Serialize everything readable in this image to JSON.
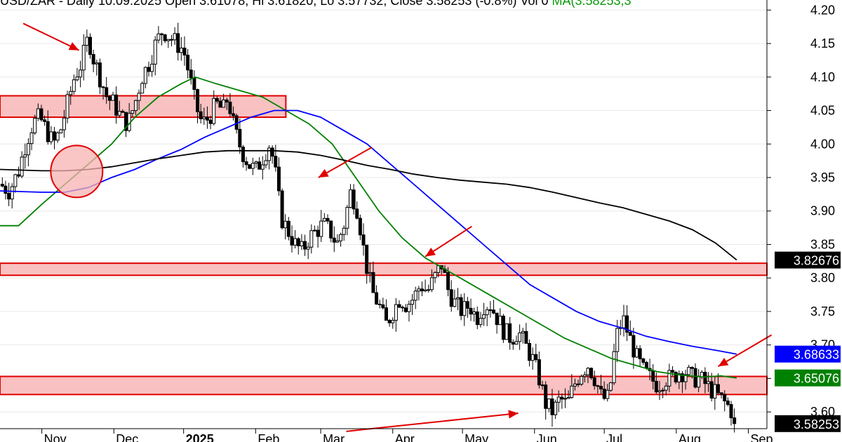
{
  "header": {
    "text": "USD/ZAR - Daily 10.09.2025 Open 3.61078, Hi 3.61820, Lo 3.57732, Close 3.58253 (-0.8%) Vol 0 ",
    "ma_text": "MA(3.58253,3"
  },
  "chart_data": {
    "type": "candlestick",
    "title": "USD/ZAR - Daily 10.09.2025",
    "ohlc_close": 3.58253,
    "ylim": [
      3.575,
      4.215
    ],
    "y_ticks": [
      "4.20",
      "4.15",
      "4.10",
      "4.05",
      "4.00",
      "3.95",
      "3.90",
      "3.85",
      "3.80",
      "3.75",
      "3.70",
      "3.65",
      "3.60"
    ],
    "x_labels": [
      "Nov",
      "Dec",
      "2025",
      "Feb",
      "Mar",
      "Apr",
      "May",
      "Jun",
      "Jul",
      "Aug",
      "Sep"
    ],
    "x_label_bold": [
      false,
      false,
      true,
      false,
      false,
      false,
      false,
      false,
      false,
      false,
      false
    ],
    "x_days": [
      0,
      31,
      61,
      92,
      120,
      151,
      181,
      212,
      242,
      273,
      304
    ],
    "x_range_days": [
      -18,
      312
    ],
    "price_path": [
      [
        -18,
        3.94
      ],
      [
        -14,
        3.93
      ],
      [
        -10,
        3.96
      ],
      [
        -7,
        4.0
      ],
      [
        -4,
        4.03
      ],
      [
        -1,
        4.04
      ],
      [
        2,
        4.02
      ],
      [
        5,
        4.0
      ],
      [
        8,
        4.02
      ],
      [
        11,
        4.06
      ],
      [
        14,
        4.1
      ],
      [
        17,
        4.12
      ],
      [
        20,
        4.16
      ],
      [
        22,
        4.13
      ],
      [
        25,
        4.1
      ],
      [
        28,
        4.07
      ],
      [
        31,
        4.06
      ],
      [
        34,
        4.04
      ],
      [
        37,
        4.03
      ],
      [
        40,
        4.06
      ],
      [
        43,
        4.1
      ],
      [
        46,
        4.12
      ],
      [
        49,
        4.15
      ],
      [
        52,
        4.17
      ],
      [
        55,
        4.16
      ],
      [
        58,
        4.15
      ],
      [
        61,
        4.14
      ],
      [
        63,
        4.11
      ],
      [
        66,
        4.06
      ],
      [
        69,
        4.03
      ],
      [
        72,
        4.04
      ],
      [
        75,
        4.06
      ],
      [
        78,
        4.05
      ],
      [
        80,
        4.07
      ],
      [
        83,
        4.02
      ],
      [
        86,
        3.99
      ],
      [
        89,
        3.97
      ],
      [
        92,
        3.96
      ],
      [
        95,
        3.98
      ],
      [
        98,
        4.0
      ],
      [
        100,
        3.97
      ],
      [
        103,
        3.89
      ],
      [
        106,
        3.87
      ],
      [
        109,
        3.85
      ],
      [
        112,
        3.84
      ],
      [
        115,
        3.86
      ],
      [
        118,
        3.87
      ],
      [
        121,
        3.88
      ],
      [
        124,
        3.87
      ],
      [
        127,
        3.85
      ],
      [
        130,
        3.88
      ],
      [
        133,
        3.93
      ],
      [
        136,
        3.9
      ],
      [
        139,
        3.83
      ],
      [
        142,
        3.78
      ],
      [
        145,
        3.76
      ],
      [
        148,
        3.73
      ],
      [
        151,
        3.75
      ],
      [
        154,
        3.77
      ],
      [
        157,
        3.76
      ],
      [
        160,
        3.77
      ],
      [
        163,
        3.79
      ],
      [
        166,
        3.78
      ],
      [
        169,
        3.8
      ],
      [
        172,
        3.82
      ],
      [
        175,
        3.78
      ],
      [
        178,
        3.76
      ],
      [
        181,
        3.75
      ],
      [
        184,
        3.76
      ],
      [
        187,
        3.74
      ],
      [
        190,
        3.76
      ],
      [
        193,
        3.76
      ],
      [
        196,
        3.74
      ],
      [
        199,
        3.72
      ],
      [
        202,
        3.71
      ],
      [
        205,
        3.72
      ],
      [
        208,
        3.7
      ],
      [
        211,
        3.68
      ],
      [
        214,
        3.65
      ],
      [
        217,
        3.61
      ],
      [
        220,
        3.6
      ],
      [
        223,
        3.62
      ],
      [
        226,
        3.61
      ],
      [
        229,
        3.64
      ],
      [
        232,
        3.66
      ],
      [
        235,
        3.67
      ],
      [
        238,
        3.65
      ],
      [
        241,
        3.62
      ],
      [
        244,
        3.62
      ],
      [
        247,
        3.71
      ],
      [
        250,
        3.74
      ],
      [
        253,
        3.71
      ],
      [
        256,
        3.68
      ],
      [
        259,
        3.66
      ],
      [
        262,
        3.65
      ],
      [
        265,
        3.64
      ],
      [
        268,
        3.65
      ],
      [
        271,
        3.65
      ],
      [
        274,
        3.66
      ],
      [
        277,
        3.66
      ],
      [
        280,
        3.65
      ],
      [
        283,
        3.65
      ],
      [
        286,
        3.64
      ],
      [
        289,
        3.63
      ],
      [
        292,
        3.62
      ],
      [
        295,
        3.61
      ],
      [
        297,
        3.6
      ],
      [
        299,
        3.58253
      ]
    ],
    "series": [
      {
        "name": "",
        "color": "#008000",
        "points": [
          [
            -18,
            3.878
          ],
          [
            -10,
            3.878
          ],
          [
            0,
            3.91
          ],
          [
            10,
            3.94
          ],
          [
            20,
            3.97
          ],
          [
            30,
            4.0
          ],
          [
            40,
            4.04
          ],
          [
            50,
            4.07
          ],
          [
            60,
            4.09
          ],
          [
            66,
            4.1
          ],
          [
            75,
            4.09
          ],
          [
            85,
            4.08
          ],
          [
            95,
            4.07
          ],
          [
            105,
            4.05
          ],
          [
            115,
            4.03
          ],
          [
            125,
            4.0
          ],
          [
            135,
            3.95
          ],
          [
            145,
            3.9
          ],
          [
            155,
            3.86
          ],
          [
            165,
            3.83
          ],
          [
            175,
            3.81
          ],
          [
            185,
            3.79
          ],
          [
            195,
            3.77
          ],
          [
            205,
            3.75
          ],
          [
            215,
            3.73
          ],
          [
            225,
            3.71
          ],
          [
            235,
            3.695
          ],
          [
            245,
            3.68
          ],
          [
            255,
            3.67
          ],
          [
            265,
            3.66
          ],
          [
            275,
            3.655
          ],
          [
            285,
            3.652
          ],
          [
            292,
            3.654
          ],
          [
            299,
            3.65076
          ]
        ]
      },
      {
        "name": "",
        "color": "#0000ff",
        "points": [
          [
            -18,
            3.93
          ],
          [
            0,
            3.928
          ],
          [
            10,
            3.928
          ],
          [
            20,
            3.935
          ],
          [
            30,
            3.95
          ],
          [
            40,
            3.962
          ],
          [
            50,
            3.978
          ],
          [
            60,
            3.992
          ],
          [
            70,
            4.01
          ],
          [
            80,
            4.025
          ],
          [
            90,
            4.04
          ],
          [
            100,
            4.05
          ],
          [
            110,
            4.05
          ],
          [
            120,
            4.04
          ],
          [
            130,
            4.02
          ],
          [
            140,
            4.0
          ],
          [
            150,
            3.97
          ],
          [
            160,
            3.94
          ],
          [
            170,
            3.91
          ],
          [
            180,
            3.88
          ],
          [
            190,
            3.85
          ],
          [
            200,
            3.82
          ],
          [
            210,
            3.79
          ],
          [
            220,
            3.77
          ],
          [
            230,
            3.75
          ],
          [
            240,
            3.735
          ],
          [
            250,
            3.725
          ],
          [
            260,
            3.713
          ],
          [
            270,
            3.705
          ],
          [
            280,
            3.698
          ],
          [
            290,
            3.692
          ],
          [
            299,
            3.68633
          ]
        ]
      },
      {
        "name": "",
        "color": "#000000",
        "points": [
          [
            -18,
            3.962
          ],
          [
            0,
            3.96
          ],
          [
            10,
            3.96
          ],
          [
            20,
            3.962
          ],
          [
            30,
            3.966
          ],
          [
            40,
            3.972
          ],
          [
            50,
            3.978
          ],
          [
            60,
            3.983
          ],
          [
            70,
            3.988
          ],
          [
            80,
            3.99
          ],
          [
            90,
            3.99
          ],
          [
            100,
            3.99
          ],
          [
            110,
            3.988
          ],
          [
            120,
            3.983
          ],
          [
            130,
            3.976
          ],
          [
            140,
            3.968
          ],
          [
            150,
            3.962
          ],
          [
            160,
            3.955
          ],
          [
            170,
            3.95
          ],
          [
            180,
            3.946
          ],
          [
            190,
            3.943
          ],
          [
            200,
            3.94
          ],
          [
            210,
            3.935
          ],
          [
            220,
            3.928
          ],
          [
            230,
            3.92
          ],
          [
            240,
            3.912
          ],
          [
            250,
            3.905
          ],
          [
            260,
            3.895
          ],
          [
            270,
            3.885
          ],
          [
            280,
            3.872
          ],
          [
            290,
            3.852
          ],
          [
            299,
            3.82676
          ]
        ]
      }
    ],
    "price_tags": [
      {
        "text": "3.82676",
        "value": 3.82676,
        "bg": "#000000"
      },
      {
        "text": "3.68633",
        "value": 3.68633,
        "bg": "#0000ff"
      },
      {
        "text": "3.65076",
        "value": 3.65076,
        "bg": "#008000"
      },
      {
        "text": "3.58253",
        "value": 3.58253,
        "bg": "#000000"
      }
    ],
    "zones": [
      {
        "from_day": -18,
        "to_day": 105,
        "y_low": 4.04,
        "y_high": 4.072
      },
      {
        "from_day": -18,
        "to_day": 312,
        "y_low": 3.804,
        "y_high": 3.822
      },
      {
        "from_day": -18,
        "to_day": 312,
        "y_low": 3.626,
        "y_high": 3.653
      }
    ],
    "circles": [
      {
        "day": 15,
        "value": 3.959
      }
    ],
    "arrows": [
      {
        "from": [
          -8,
          4.18
        ],
        "to": [
          16,
          4.14
        ]
      },
      {
        "from": [
          142,
          3.995
        ],
        "to": [
          119,
          3.95
        ]
      },
      {
        "from": [
          185,
          3.877
        ],
        "to": [
          165,
          3.832
        ]
      },
      {
        "from": [
          314,
          3.715
        ],
        "to": [
          291,
          3.668
        ]
      },
      {
        "from": [
          131,
          3.571
        ],
        "to": [
          205,
          3.598
        ]
      }
    ],
    "colors": {
      "candle": "#000000",
      "zone_fill": "#f7b2b2",
      "zone_stroke": "#e00000",
      "arrow": "#e00000",
      "grid": "#e8e8e8"
    }
  }
}
